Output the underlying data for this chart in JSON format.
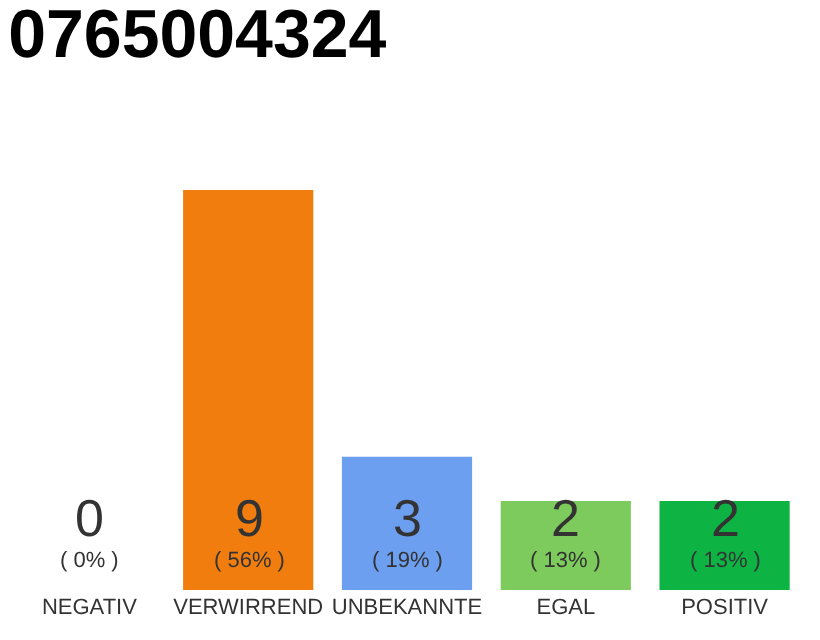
{
  "chart_data": {
    "type": "bar",
    "title": "0765004324",
    "categories": [
      "NEGATIV",
      "VERWIRREND",
      "UNBEKANNTE",
      "EGAL",
      "POSITIV"
    ],
    "values": [
      0,
      9,
      3,
      2,
      2
    ],
    "colors": [
      "#cccccc",
      "#f07d0e",
      "#6c9ff0",
      "#7ccb5c",
      "#0db443"
    ],
    "value_labels": [
      "0\n( 0% )",
      "9\n( 56% )",
      "3\n( 19% )",
      "2\n( 13% )",
      "2\n( 13% )"
    ],
    "ylim": [
      0,
      9
    ],
    "tick_labels": "x"
  }
}
